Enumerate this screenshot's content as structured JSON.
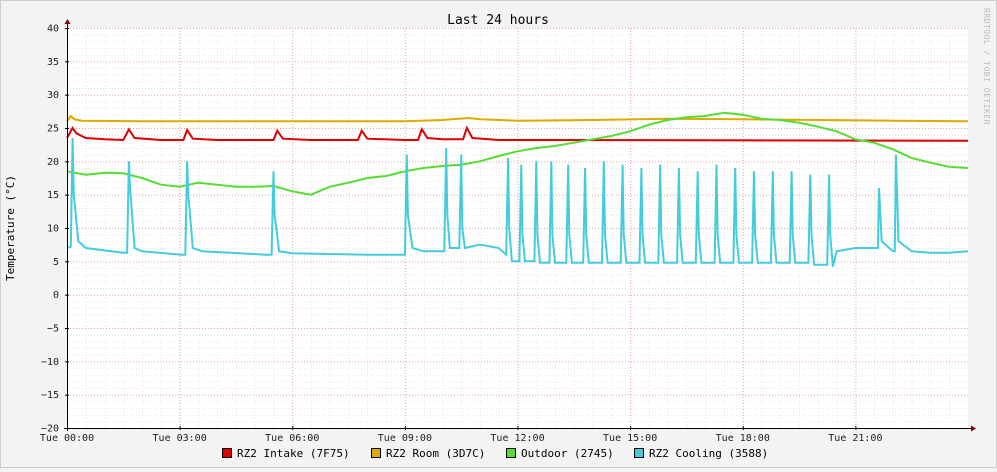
{
  "chart_data": {
    "type": "line",
    "title": "Last 24 hours",
    "ylabel": "Temperature (°C)",
    "xlabel": "",
    "watermark": "RRDTOOL / TOBI OETIKER",
    "ylim": [
      -20,
      40
    ],
    "y_ticks": [
      -20,
      -15,
      -10,
      -5,
      0,
      5,
      10,
      15,
      20,
      25,
      30,
      35,
      40
    ],
    "y_tick_labels": [
      "−20",
      "−15",
      "−10",
      "−5",
      "0",
      "5",
      "10",
      "15",
      "20",
      "25",
      "30",
      "35",
      "40"
    ],
    "xlim_hours": [
      0,
      24
    ],
    "x_ticks": [
      0,
      3,
      6,
      9,
      12,
      15,
      18,
      21
    ],
    "x_tick_labels": [
      "Tue 00:00",
      "Tue 03:00",
      "Tue 06:00",
      "Tue 09:00",
      "Tue 12:00",
      "Tue 15:00",
      "Tue 18:00",
      "Tue 21:00"
    ],
    "grid": true,
    "legend_position": "bottom",
    "colors": {
      "background": "#f3f3f3",
      "canvas": "#ffffff",
      "major_grid": "#e7a0a0",
      "minor_grid": "#e6e6e6",
      "axis": "#000000",
      "arrow": "#880000"
    },
    "series": [
      {
        "name": "RZ2 Intake (7F75)",
        "color": "#dd0000",
        "x": [
          0,
          0.15,
          0.25,
          0.5,
          1,
          1.5,
          1.65,
          1.8,
          2.5,
          3.1,
          3.2,
          3.35,
          4,
          5,
          5.5,
          5.6,
          5.75,
          6.5,
          7.5,
          7.75,
          7.85,
          8,
          9,
          9.35,
          9.45,
          9.6,
          10,
          10.55,
          10.65,
          10.8,
          11.5,
          12,
          24
        ],
        "y": [
          23.5,
          25.0,
          24.2,
          23.5,
          23.3,
          23.2,
          24.8,
          23.5,
          23.2,
          23.2,
          24.7,
          23.4,
          23.2,
          23.2,
          23.2,
          24.6,
          23.4,
          23.2,
          23.2,
          23.2,
          24.6,
          23.4,
          23.2,
          23.2,
          24.8,
          23.5,
          23.3,
          23.3,
          25.0,
          23.5,
          23.2,
          23.2,
          23.1
        ]
      },
      {
        "name": "RZ2 Room (3D7C)",
        "color": "#ddaa00",
        "x": [
          0,
          0.1,
          0.2,
          0.4,
          2,
          4,
          6,
          8,
          9,
          10,
          10.7,
          11,
          12,
          14,
          16,
          18,
          20,
          22,
          24
        ],
        "y": [
          26.0,
          26.8,
          26.3,
          26.1,
          26.0,
          26.0,
          26.0,
          26.0,
          26.0,
          26.2,
          26.5,
          26.3,
          26.1,
          26.2,
          26.4,
          26.3,
          26.2,
          26.1,
          26.0
        ]
      },
      {
        "name": "Outdoor (2745)",
        "color": "#55dd33",
        "x": [
          0,
          0.5,
          1,
          1.5,
          2,
          2.5,
          3,
          3.5,
          4,
          4.5,
          5,
          5.5,
          6,
          6.5,
          7,
          7.5,
          8,
          8.5,
          9,
          9.5,
          10,
          10.5,
          11,
          11.5,
          12,
          12.5,
          13,
          13.5,
          14,
          14.5,
          15,
          15.5,
          16,
          16.5,
          17,
          17.5,
          18,
          18.5,
          19,
          19.5,
          20,
          20.5,
          21,
          21.5,
          22,
          22.5,
          23,
          23.5,
          24
        ],
        "y": [
          18.5,
          18.0,
          18.3,
          18.2,
          17.5,
          16.5,
          16.2,
          16.8,
          16.5,
          16.2,
          16.2,
          16.3,
          15.5,
          15.0,
          16.2,
          16.8,
          17.5,
          17.8,
          18.5,
          19.0,
          19.3,
          19.5,
          20.0,
          20.8,
          21.5,
          22.0,
          22.3,
          22.8,
          23.3,
          23.8,
          24.5,
          25.5,
          26.2,
          26.6,
          26.8,
          27.3,
          27.0,
          26.4,
          26.2,
          25.8,
          25.2,
          24.5,
          23.3,
          22.8,
          21.8,
          20.5,
          19.8,
          19.2,
          19.0
        ]
      },
      {
        "name": "RZ2 Cooling (3588)",
        "color": "#44ccdd",
        "x": [
          0,
          0.1,
          0.15,
          0.18,
          0.3,
          0.5,
          1.5,
          1.6,
          1.65,
          1.68,
          1.8,
          2,
          3.05,
          3.15,
          3.2,
          3.23,
          3.35,
          3.6,
          5.3,
          5.45,
          5.5,
          5.53,
          5.65,
          6,
          8,
          8.9,
          9.0,
          9.05,
          9.08,
          9.2,
          9.5,
          10.05,
          10.1,
          10.13,
          10.2,
          10.45,
          10.5,
          10.53,
          10.6,
          11,
          11.5,
          11.7,
          11.75,
          11.78,
          11.85,
          12.05,
          12.1,
          12.13,
          12.2,
          12.45,
          12.5,
          12.53,
          12.6,
          12.85,
          12.9,
          12.93,
          13.0,
          13.3,
          13.35,
          13.38,
          13.45,
          13.75,
          13.8,
          13.83,
          13.9,
          14.25,
          14.3,
          14.33,
          14.4,
          14.75,
          14.8,
          14.83,
          14.9,
          15.25,
          15.3,
          15.33,
          15.4,
          15.75,
          15.8,
          15.83,
          15.9,
          16.25,
          16.3,
          16.33,
          16.4,
          16.75,
          16.8,
          16.83,
          16.9,
          17.25,
          17.3,
          17.33,
          17.4,
          17.75,
          17.8,
          17.83,
          17.9,
          18.25,
          18.3,
          18.33,
          18.4,
          18.75,
          18.8,
          18.83,
          18.9,
          19.25,
          19.3,
          19.33,
          19.4,
          19.75,
          19.8,
          19.83,
          19.9,
          20.25,
          20.3,
          20.33,
          20.4,
          20.5,
          21.0,
          21.5,
          21.6,
          21.63,
          21.7,
          22,
          22.05,
          22.08,
          22.15,
          22.5,
          23,
          23.5,
          24
        ],
        "y": [
          7.0,
          7.2,
          23.5,
          15.0,
          8.0,
          7.0,
          6.3,
          6.3,
          20.0,
          16.0,
          7.0,
          6.5,
          6.0,
          6.0,
          20.0,
          15.0,
          7.0,
          6.5,
          6.0,
          6.0,
          18.5,
          12.0,
          6.5,
          6.2,
          6.0,
          6.0,
          6.0,
          21.0,
          12.0,
          7.0,
          6.5,
          6.5,
          22.0,
          12.0,
          7.0,
          7.0,
          21.0,
          10.0,
          7.0,
          7.5,
          7.0,
          6.0,
          20.5,
          10.0,
          5.0,
          5.0,
          19.5,
          9.0,
          5.0,
          5.0,
          20.0,
          9.0,
          4.8,
          4.8,
          20.0,
          9.0,
          4.8,
          4.8,
          19.5,
          9.0,
          4.8,
          4.8,
          19.0,
          9.0,
          4.8,
          4.8,
          20.0,
          9.0,
          4.8,
          4.8,
          19.5,
          9.0,
          4.8,
          4.8,
          19.0,
          9.0,
          4.8,
          4.8,
          19.5,
          9.0,
          4.8,
          4.8,
          19.0,
          9.0,
          4.8,
          4.8,
          18.5,
          9.0,
          4.8,
          4.8,
          19.5,
          9.0,
          4.8,
          4.8,
          19.0,
          9.0,
          4.8,
          4.8,
          18.5,
          9.0,
          4.8,
          4.8,
          18.5,
          9.0,
          4.8,
          4.8,
          18.5,
          9.0,
          4.8,
          4.8,
          18.0,
          9.0,
          4.5,
          4.5,
          18.0,
          9.0,
          4.2,
          6.5,
          7.0,
          7.0,
          7.0,
          16.0,
          8.0,
          6.5,
          6.5,
          21.0,
          8.0,
          6.5,
          6.3,
          6.3,
          6.5
        ]
      }
    ]
  }
}
